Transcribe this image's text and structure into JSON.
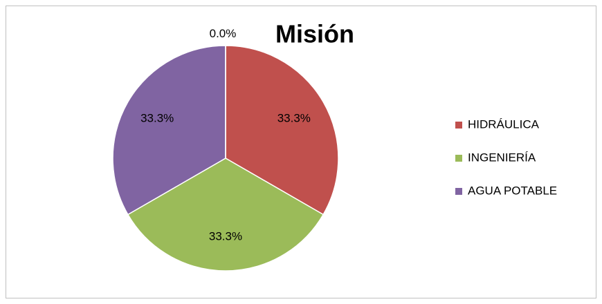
{
  "chart_data": {
    "type": "pie",
    "title": "Misión",
    "categories": [
      "HIDRÁULICA",
      "INGENIERÍA",
      "AGUA POTABLE",
      null
    ],
    "values": [
      33.3,
      33.3,
      33.3,
      0
    ],
    "value_labels": [
      "33.3%",
      "33.3%",
      "33.3%",
      "0.0%"
    ],
    "colors": [
      "#c0504d",
      "#9bbb59",
      "#8064a2"
    ],
    "legend": "right"
  }
}
